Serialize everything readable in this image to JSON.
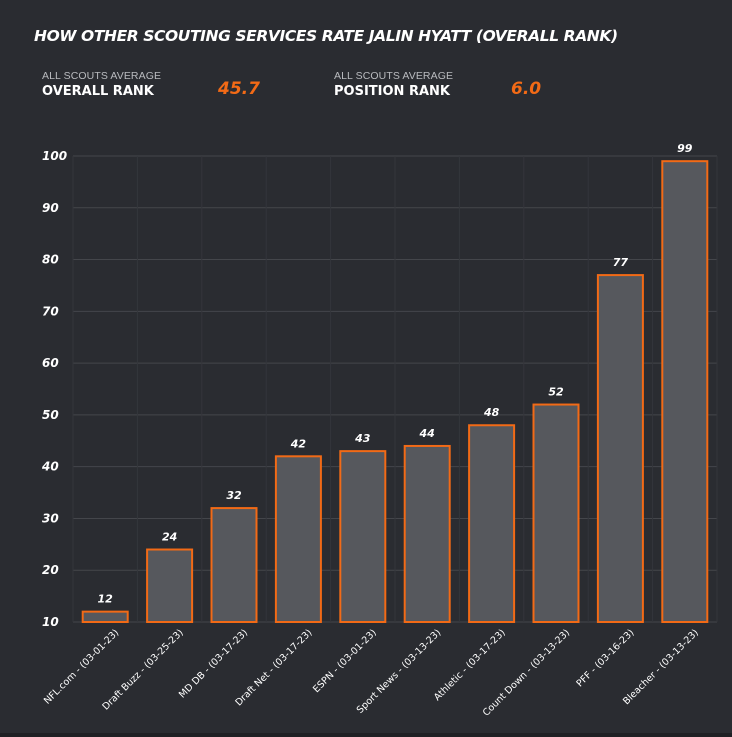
{
  "title": "HOW OTHER SCOUTING SERVICES RATE JALIN HYATT (OVERALL RANK)",
  "stats": [
    {
      "small_label": "ALL SCOUTS AVERAGE",
      "label": "OVERALL RANK",
      "value": "45.7"
    },
    {
      "small_label": "ALL SCOUTS AVERAGE",
      "label": "POSITION RANK",
      "value": "6.0"
    }
  ],
  "colors": {
    "background": "#2a2c31",
    "bar_fill": "#56585d",
    "bar_stroke": "#f26a16",
    "accent": "#f26a16",
    "grid": "#44464b"
  },
  "chart_data": {
    "type": "bar",
    "title": "HOW OTHER SCOUTING SERVICES RATE JALIN HYATT (OVERALL RANK)",
    "categories": [
      "NFL.com - (03-01-23)",
      "Draft Buzz - (03-25-23)",
      "MD DB - (03-17-23)",
      "Draft Net - (03-17-23)",
      "ESPN - (03-01-23)",
      "Sport News - (03-13-23)",
      "Athletic - (03-17-23)",
      "Count Down - (03-13-23)",
      "PFF - (03-16-23)",
      "Bleacher - (03-13-23)"
    ],
    "values": [
      12,
      24,
      32,
      42,
      43,
      44,
      48,
      52,
      77,
      99
    ],
    "ylim": [
      10,
      100
    ],
    "yticks": [
      10,
      20,
      30,
      40,
      50,
      60,
      70,
      80,
      90,
      100
    ],
    "grid": true,
    "data_labels": true
  }
}
